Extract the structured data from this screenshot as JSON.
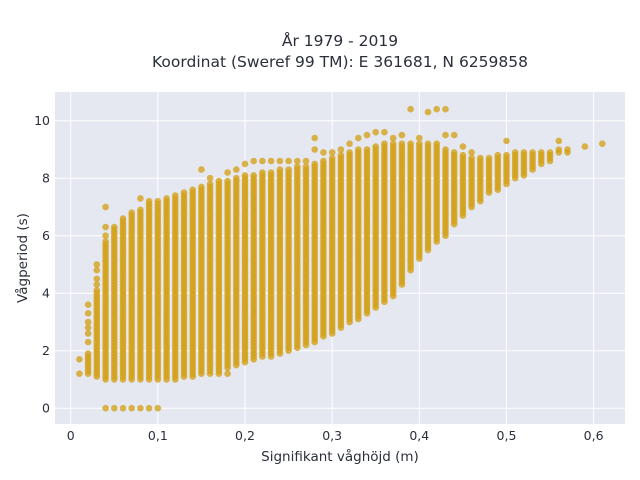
{
  "chart_data": {
    "type": "scatter",
    "title_lines": [
      "År 1979 - 2019",
      "Koordinat (Sweref 99 TM): E 361681, N 6259858"
    ],
    "xlabel": "Signifikant våghöjd (m)",
    "ylabel": "Vågperiod (s)",
    "xlim": [
      -0.018,
      0.636
    ],
    "ylim": [
      -0.55,
      11.0
    ],
    "x_ticks": [
      0,
      0.1,
      0.2,
      0.3,
      0.4,
      0.5,
      0.6
    ],
    "x_tick_labels": [
      "0",
      "0,1",
      "0,2",
      "0,3",
      "0,4",
      "0,5",
      "0,6"
    ],
    "y_ticks": [
      0,
      2,
      4,
      6,
      8,
      10
    ],
    "y_tick_labels": [
      "0",
      "2",
      "4",
      "6",
      "8",
      "10"
    ],
    "grid": true,
    "legend": "none",
    "marker_color": "#D4A017",
    "background_color": "#E5E8F1",
    "grid_color": "#FFFFFF",
    "x_step": 0.01,
    "y_step": 0.1,
    "columns": [
      {
        "x": 0.01,
        "ymin": 1.2,
        "ymax": 1.2,
        "extra": [
          1.7
        ]
      },
      {
        "x": 0.02,
        "ymin": 1.2,
        "ymax": 1.9,
        "extra": [
          2.3,
          2.6,
          2.8,
          3.0,
          3.3,
          3.6
        ]
      },
      {
        "x": 0.03,
        "ymin": 1.1,
        "ymax": 4.1,
        "extra": [
          4.3,
          4.5,
          4.8,
          5.0
        ]
      },
      {
        "x": 0.04,
        "ymin": 1.0,
        "ymax": 5.8,
        "extra": [
          6.0,
          6.3,
          7.0,
          0.0
        ]
      },
      {
        "x": 0.05,
        "ymin": 1.0,
        "ymax": 6.3,
        "extra": [
          0.0
        ]
      },
      {
        "x": 0.06,
        "ymin": 1.0,
        "ymax": 6.6,
        "extra": [
          0.0
        ]
      },
      {
        "x": 0.07,
        "ymin": 1.0,
        "ymax": 6.8,
        "extra": [
          0.0
        ]
      },
      {
        "x": 0.08,
        "ymin": 1.0,
        "ymax": 6.9,
        "extra": [
          7.3,
          0.0
        ]
      },
      {
        "x": 0.09,
        "ymin": 1.0,
        "ymax": 7.2,
        "extra": [
          0.0
        ]
      },
      {
        "x": 0.1,
        "ymin": 1.0,
        "ymax": 7.2,
        "extra": [
          0.0
        ]
      },
      {
        "x": 0.11,
        "ymin": 1.0,
        "ymax": 7.3
      },
      {
        "x": 0.12,
        "ymin": 1.0,
        "ymax": 7.4
      },
      {
        "x": 0.13,
        "ymin": 1.1,
        "ymax": 7.5
      },
      {
        "x": 0.14,
        "ymin": 1.1,
        "ymax": 7.6
      },
      {
        "x": 0.15,
        "ymin": 1.2,
        "ymax": 7.7,
        "extra": [
          8.3
        ]
      },
      {
        "x": 0.16,
        "ymin": 1.2,
        "ymax": 7.8,
        "extra": [
          8.0
        ]
      },
      {
        "x": 0.17,
        "ymin": 1.3,
        "ymax": 7.9,
        "extra": [
          1.2
        ]
      },
      {
        "x": 0.18,
        "ymin": 1.4,
        "ymax": 7.9,
        "extra": [
          8.2,
          1.2
        ]
      },
      {
        "x": 0.19,
        "ymin": 1.5,
        "ymax": 8.0,
        "extra": [
          8.3
        ]
      },
      {
        "x": 0.2,
        "ymin": 1.6,
        "ymax": 8.1,
        "extra": [
          8.5
        ]
      },
      {
        "x": 0.21,
        "ymin": 1.7,
        "ymax": 8.1,
        "extra": [
          8.6
        ]
      },
      {
        "x": 0.22,
        "ymin": 1.8,
        "ymax": 8.2,
        "extra": [
          8.6
        ]
      },
      {
        "x": 0.23,
        "ymin": 1.8,
        "ymax": 8.2,
        "extra": [
          8.6
        ]
      },
      {
        "x": 0.24,
        "ymin": 1.9,
        "ymax": 8.3,
        "extra": [
          8.6
        ]
      },
      {
        "x": 0.25,
        "ymin": 2.0,
        "ymax": 8.3,
        "extra": [
          8.6
        ]
      },
      {
        "x": 0.26,
        "ymin": 2.1,
        "ymax": 8.4,
        "extra": [
          8.6
        ]
      },
      {
        "x": 0.27,
        "ymin": 2.2,
        "ymax": 8.4,
        "extra": [
          8.6
        ]
      },
      {
        "x": 0.28,
        "ymin": 2.3,
        "ymax": 8.5,
        "extra": [
          9.0,
          9.4
        ]
      },
      {
        "x": 0.29,
        "ymin": 2.5,
        "ymax": 8.6,
        "extra": [
          8.9
        ]
      },
      {
        "x": 0.3,
        "ymin": 2.6,
        "ymax": 8.7,
        "extra": [
          8.9
        ]
      },
      {
        "x": 0.31,
        "ymin": 2.8,
        "ymax": 8.8,
        "extra": [
          9.0
        ]
      },
      {
        "x": 0.32,
        "ymin": 3.0,
        "ymax": 8.9,
        "extra": [
          9.2
        ]
      },
      {
        "x": 0.33,
        "ymin": 3.1,
        "ymax": 9.0,
        "extra": [
          9.4
        ]
      },
      {
        "x": 0.34,
        "ymin": 3.3,
        "ymax": 9.0,
        "extra": [
          9.5
        ]
      },
      {
        "x": 0.35,
        "ymin": 3.5,
        "ymax": 9.1,
        "extra": [
          9.6
        ]
      },
      {
        "x": 0.36,
        "ymin": 3.7,
        "ymax": 9.2,
        "extra": [
          9.6
        ]
      },
      {
        "x": 0.37,
        "ymin": 3.9,
        "ymax": 9.2,
        "extra": [
          9.4
        ]
      },
      {
        "x": 0.38,
        "ymin": 4.3,
        "ymax": 9.2,
        "extra": [
          9.5
        ]
      },
      {
        "x": 0.39,
        "ymin": 4.8,
        "ymax": 9.2,
        "extra": [
          10.4
        ]
      },
      {
        "x": 0.4,
        "ymin": 5.2,
        "ymax": 9.2,
        "extra": [
          9.4
        ]
      },
      {
        "x": 0.41,
        "ymin": 5.5,
        "ymax": 9.2,
        "extra": [
          10.3
        ]
      },
      {
        "x": 0.42,
        "ymin": 5.8,
        "ymax": 9.2,
        "extra": [
          10.4
        ]
      },
      {
        "x": 0.43,
        "ymin": 6.0,
        "ymax": 9.0,
        "extra": [
          9.5,
          10.4
        ]
      },
      {
        "x": 0.44,
        "ymin": 6.4,
        "ymax": 8.9,
        "extra": [
          9.5
        ]
      },
      {
        "x": 0.45,
        "ymin": 6.7,
        "ymax": 8.8,
        "extra": [
          9.1
        ]
      },
      {
        "x": 0.46,
        "ymin": 7.0,
        "ymax": 8.7,
        "extra": [
          8.9
        ]
      },
      {
        "x": 0.47,
        "ymin": 7.2,
        "ymax": 8.7
      },
      {
        "x": 0.48,
        "ymin": 7.5,
        "ymax": 8.7
      },
      {
        "x": 0.49,
        "ymin": 7.6,
        "ymax": 8.8
      },
      {
        "x": 0.5,
        "ymin": 7.8,
        "ymax": 8.8,
        "extra": [
          9.3
        ]
      },
      {
        "x": 0.51,
        "ymin": 8.0,
        "ymax": 8.9
      },
      {
        "x": 0.52,
        "ymin": 8.1,
        "ymax": 8.9
      },
      {
        "x": 0.53,
        "ymin": 8.3,
        "ymax": 8.9
      },
      {
        "x": 0.54,
        "ymin": 8.5,
        "ymax": 8.9
      },
      {
        "x": 0.55,
        "ymin": 8.6,
        "ymax": 8.9
      },
      {
        "x": 0.56,
        "ymin": 8.9,
        "ymax": 9.0,
        "extra": [
          9.3
        ]
      },
      {
        "x": 0.57,
        "ymin": 8.9,
        "ymax": 9.0
      },
      {
        "x": 0.59,
        "ymin": 9.1,
        "ymax": 9.1
      },
      {
        "x": 0.61,
        "ymin": 9.2,
        "ymax": 9.2
      }
    ]
  }
}
